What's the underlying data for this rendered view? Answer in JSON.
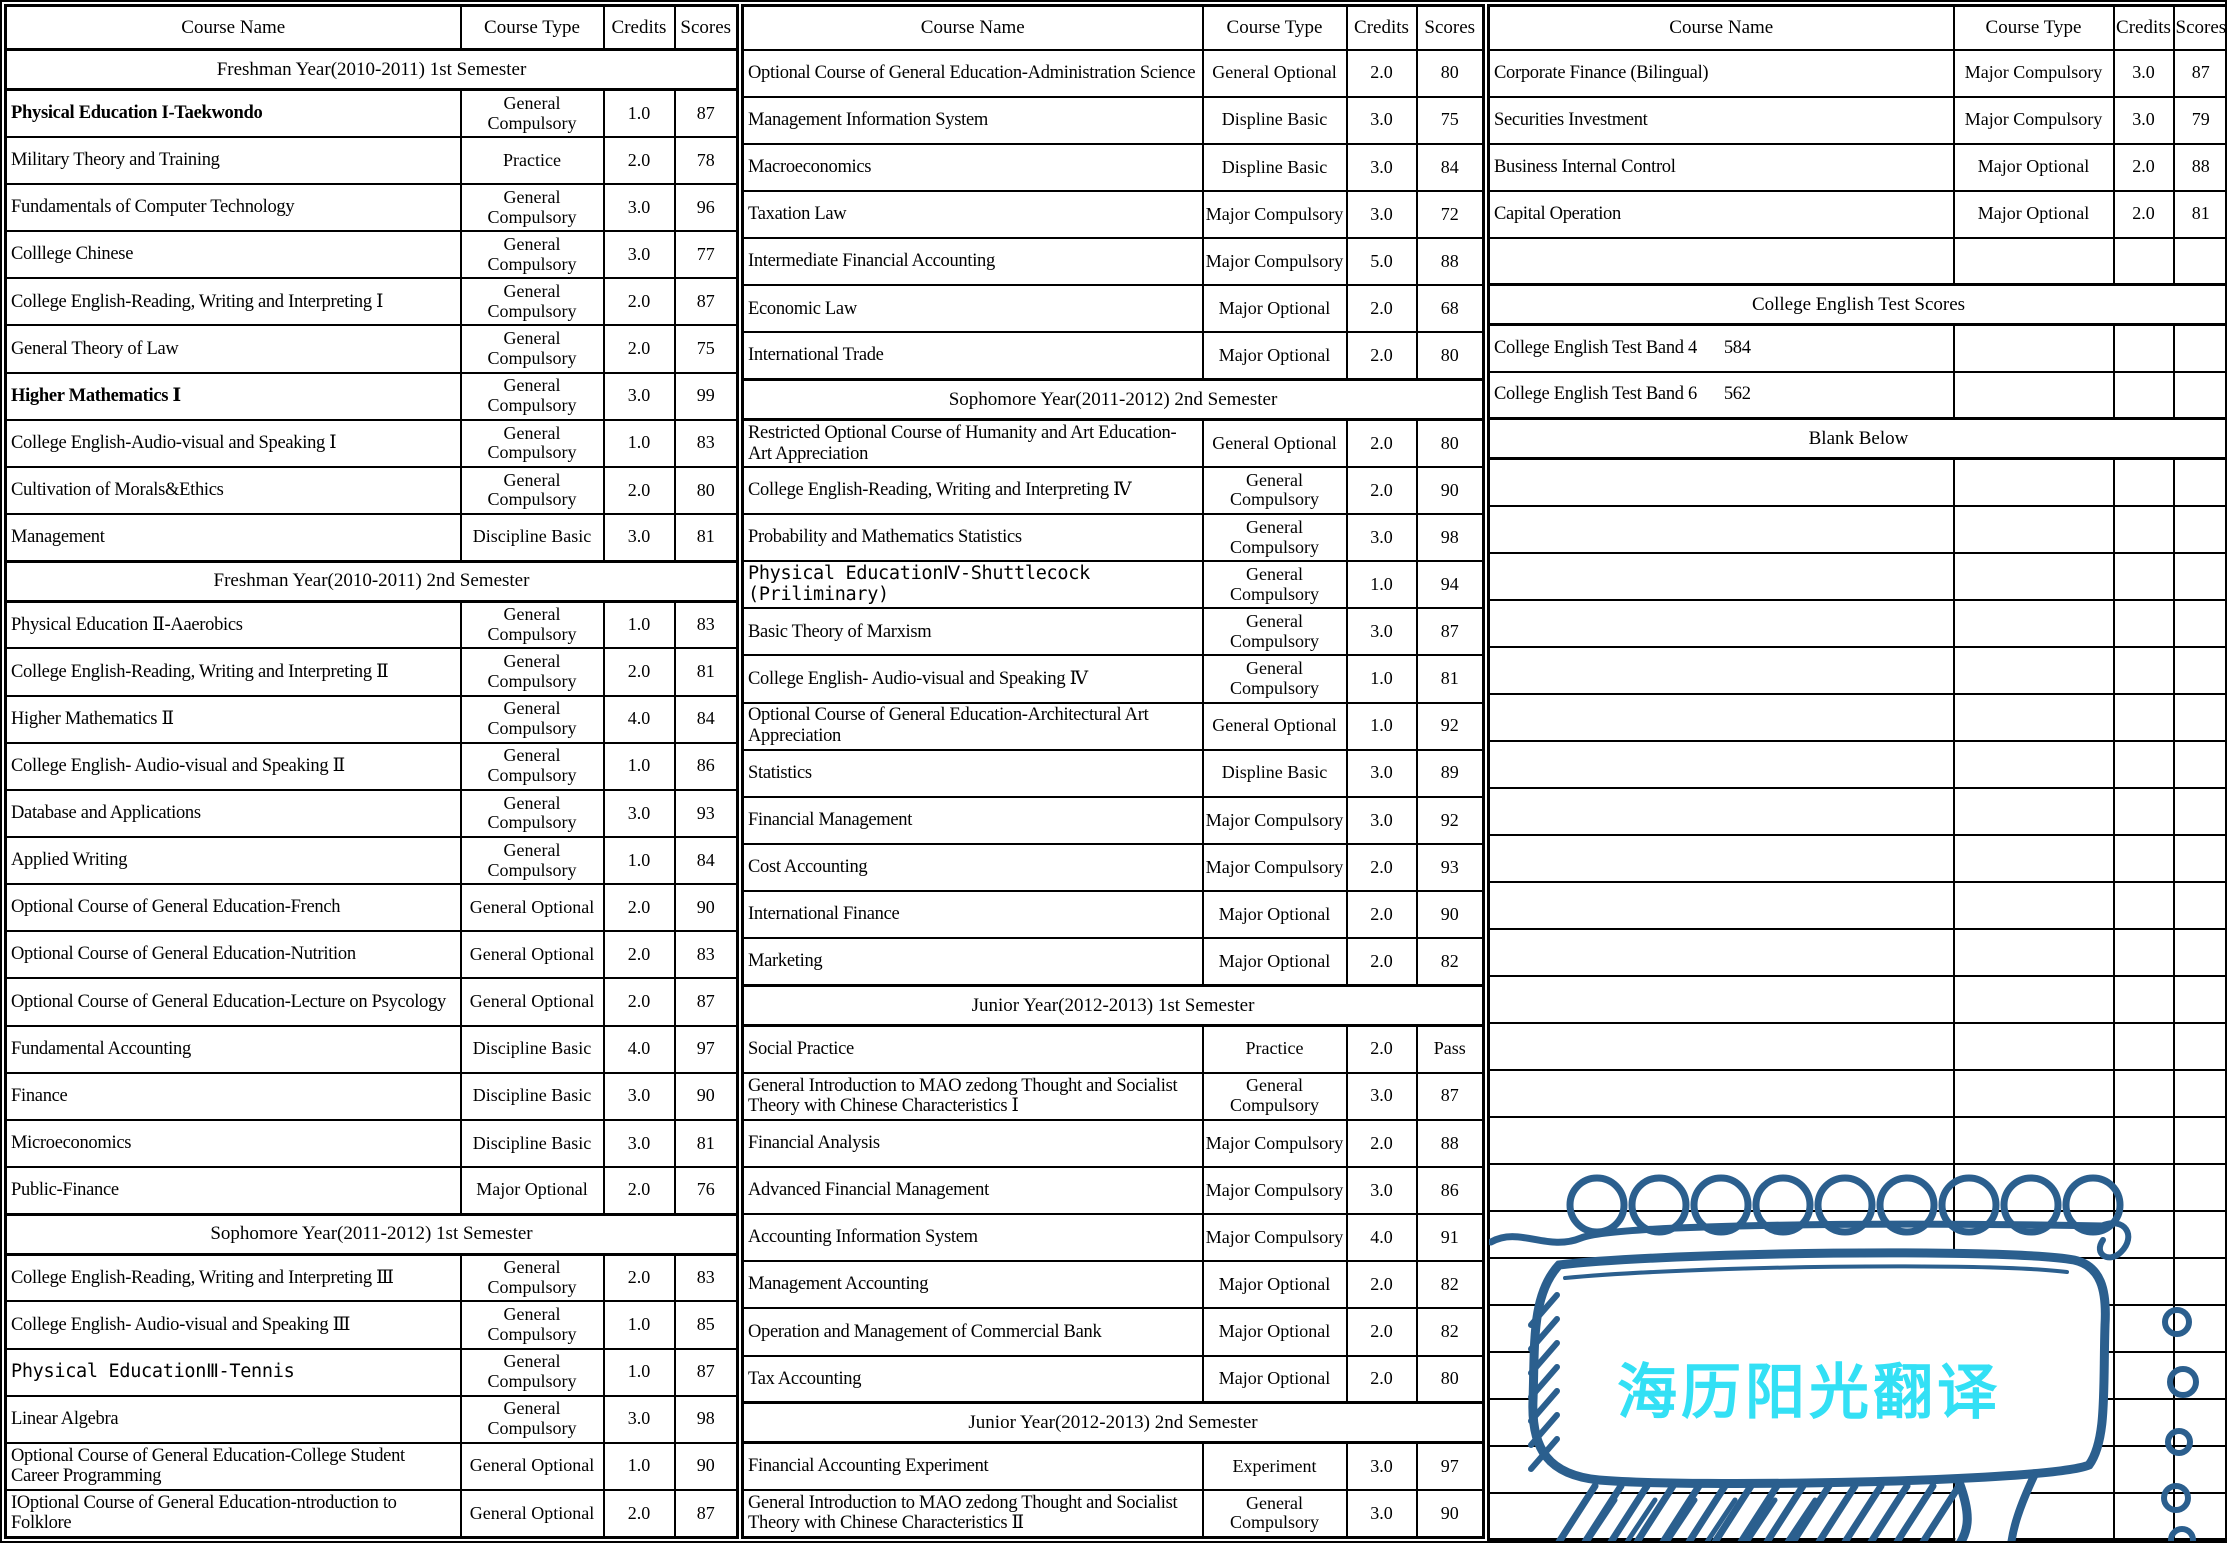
{
  "columns": [
    "Course Name",
    "Course Type",
    "Credits",
    "Scores"
  ],
  "groups": [
    {
      "rows": [
        {
          "kind": "section",
          "text": "Freshman Year(2010-2011) 1st Semester"
        },
        {
          "kind": "course",
          "name": "Physical Education I-Taekwondo",
          "type": "General Compulsory",
          "credits": "1.0",
          "score": "87",
          "bold": true
        },
        {
          "kind": "course",
          "name": "Military Theory and Training",
          "type": "Practice",
          "credits": "2.0",
          "score": "78"
        },
        {
          "kind": "course",
          "name": "Fundamentals of Computer Technology",
          "type": "General Compulsory",
          "credits": "3.0",
          "score": "96"
        },
        {
          "kind": "course",
          "name": "Colllege Chinese",
          "type": "General Compulsory",
          "credits": "3.0",
          "score": "77"
        },
        {
          "kind": "course",
          "name": "College English-Reading, Writing and Interpreting Ⅰ",
          "type": "General Compulsory",
          "credits": "2.0",
          "score": "87"
        },
        {
          "kind": "course",
          "name": "General Theory of Law",
          "type": "General Compulsory",
          "credits": "2.0",
          "score": "75"
        },
        {
          "kind": "course",
          "name": "Higher Mathematics Ⅰ",
          "type": "General Compulsory",
          "credits": "3.0",
          "score": "99",
          "bold": true
        },
        {
          "kind": "course",
          "name": "College English-Audio-visual and Speaking Ⅰ",
          "type": "General Compulsory",
          "credits": "1.0",
          "score": "83"
        },
        {
          "kind": "course",
          "name": "Cultivation of Morals&Ethics",
          "type": "General Compulsory",
          "credits": "2.0",
          "score": "80"
        },
        {
          "kind": "course",
          "name": "Management",
          "type": "Discipline Basic",
          "credits": "3.0",
          "score": "81"
        },
        {
          "kind": "section",
          "text": "Freshman Year(2010-2011) 2nd Semester"
        },
        {
          "kind": "course",
          "name": "Physical Education Ⅱ-Aaerobics",
          "type": "General Compulsory",
          "credits": "1.0",
          "score": "83"
        },
        {
          "kind": "course",
          "name": "College English-Reading, Writing and Interpreting Ⅱ",
          "type": "General Compulsory",
          "credits": "2.0",
          "score": "81"
        },
        {
          "kind": "course",
          "name": "Higher Mathematics Ⅱ",
          "type": "General Compulsory",
          "credits": "4.0",
          "score": "84"
        },
        {
          "kind": "course",
          "name": "College English- Audio-visual and Speaking Ⅱ",
          "type": "General Compulsory",
          "credits": "1.0",
          "score": "86"
        },
        {
          "kind": "course",
          "name": "Database and Applications",
          "type": "General Compulsory",
          "credits": "3.0",
          "score": "93"
        },
        {
          "kind": "course",
          "name": "Applied Writing",
          "type": "General Compulsory",
          "credits": "1.0",
          "score": "84"
        },
        {
          "kind": "course",
          "name": "Optional Course of General Education-French",
          "type": "General Optional",
          "credits": "2.0",
          "score": "90"
        },
        {
          "kind": "course",
          "name": "Optional Course of General Education-Nutrition",
          "type": "General Optional",
          "credits": "2.0",
          "score": "83"
        },
        {
          "kind": "course",
          "name": "Optional Course of General Education-Lecture on Psycology",
          "type": "General Optional",
          "credits": "2.0",
          "score": "87"
        },
        {
          "kind": "course",
          "name": "Fundamental  Accounting",
          "type": "Discipline Basic",
          "credits": "4.0",
          "score": "97"
        },
        {
          "kind": "course",
          "name": "Finance",
          "type": "Discipline Basic",
          "credits": "3.0",
          "score": "90"
        },
        {
          "kind": "course",
          "name": "Microeconomics",
          "type": "Discipline Basic",
          "credits": "3.0",
          "score": "81"
        },
        {
          "kind": "course",
          "name": "Public-Finance",
          "type": "Major Optional",
          "credits": "2.0",
          "score": "76"
        },
        {
          "kind": "section",
          "text": "Sophomore Year(2011-2012) 1st Semester"
        },
        {
          "kind": "course",
          "name": "College English-Reading, Writing and Interpreting Ⅲ",
          "type": "General Compulsory",
          "credits": "2.0",
          "score": "83"
        },
        {
          "kind": "course",
          "name": "College English- Audio-visual and Speaking Ⅲ",
          "type": "General Compulsory",
          "credits": "1.0",
          "score": "85"
        },
        {
          "kind": "course",
          "name": "Physical EducationⅢ-Tennis",
          "type": "General Compulsory",
          "credits": "1.0",
          "score": "87",
          "mono": true
        },
        {
          "kind": "course",
          "name": "Linear Algebra",
          "type": "General Compulsory",
          "credits": "3.0",
          "score": "98"
        },
        {
          "kind": "course",
          "name": "Optional Course of General Education-College Student Career Programming",
          "type": "General Optional",
          "credits": "1.0",
          "score": "90"
        },
        {
          "kind": "course",
          "name": "IOptional Course of General Education-ntroduction to Folklore",
          "type": "General Optional",
          "credits": "2.0",
          "score": "87"
        }
      ]
    },
    {
      "rows": [
        {
          "kind": "course",
          "name": "Optional Course of General Education-Administration Science",
          "type": "General Optional",
          "credits": "2.0",
          "score": "80"
        },
        {
          "kind": "course",
          "name": "Management Information System",
          "type": "Displine Basic",
          "credits": "3.0",
          "score": "75"
        },
        {
          "kind": "course",
          "name": "Macroeconomics",
          "type": "Displine Basic",
          "credits": "3.0",
          "score": "84"
        },
        {
          "kind": "course",
          "name": "Taxation Law",
          "type": "Major Compulsory",
          "credits": "3.0",
          "score": "72"
        },
        {
          "kind": "course",
          "name": "Intermediate Financial Accounting",
          "type": "Major Compulsory",
          "credits": "5.0",
          "score": "88"
        },
        {
          "kind": "course",
          "name": "Economic Law",
          "type": "Major Optional",
          "credits": "2.0",
          "score": "68"
        },
        {
          "kind": "course",
          "name": "International Trade",
          "type": "Major Optional",
          "credits": "2.0",
          "score": "80"
        },
        {
          "kind": "section",
          "text": "Sophomore Year(2011-2012) 2nd Semester"
        },
        {
          "kind": "course",
          "name": "Restricted Optional Course of  Humanity and Art Education-Art Appreciation",
          "type": "General Optional",
          "credits": "2.0",
          "score": "80"
        },
        {
          "kind": "course",
          "name": "College English-Reading, Writing and Interpreting Ⅳ",
          "type": "General Compulsory",
          "credits": "2.0",
          "score": "90"
        },
        {
          "kind": "course",
          "name": "Probability and Mathematics Statistics",
          "type": "General Compulsory",
          "credits": "3.0",
          "score": "98"
        },
        {
          "kind": "course",
          "name": "Physical EducationⅣ-Shuttlecock (Priliminary)",
          "type": "General Compulsory",
          "credits": "1.0",
          "score": "94",
          "mono": true
        },
        {
          "kind": "course",
          "name": "Basic Theory of Marxism",
          "type": "General Compulsory",
          "credits": "3.0",
          "score": "87"
        },
        {
          "kind": "course",
          "name": "College English- Audio-visual and Speaking Ⅳ",
          "type": "General Compulsory",
          "credits": "1.0",
          "score": "81"
        },
        {
          "kind": "course",
          "name": "Optional Course of General Education-Architectural Art Appreciation",
          "type": "General Optional",
          "credits": "1.0",
          "score": "92"
        },
        {
          "kind": "course",
          "name": "Statistics",
          "type": "Displine Basic",
          "credits": "3.0",
          "score": "89"
        },
        {
          "kind": "course",
          "name": "Financial Management",
          "type": "Major Compulsory",
          "credits": "3.0",
          "score": "92"
        },
        {
          "kind": "course",
          "name": "Cost Accounting",
          "type": "Major Compulsory",
          "credits": "2.0",
          "score": "93"
        },
        {
          "kind": "course",
          "name": "International Finance",
          "type": "Major Optional",
          "credits": "2.0",
          "score": "90"
        },
        {
          "kind": "course",
          "name": "Marketing",
          "type": "Major Optional",
          "credits": "2.0",
          "score": "82"
        },
        {
          "kind": "section",
          "text": "Junior Year(2012-2013) 1st Semester"
        },
        {
          "kind": "course",
          "name": "Social Practice",
          "type": "Practice",
          "credits": "2.0",
          "score": "Pass"
        },
        {
          "kind": "course",
          "name": "General Introduction to MAO zedong Thought and Socialist Theory with Chinese Characteristics Ⅰ",
          "type": "General Compulsory",
          "credits": "3.0",
          "score": "87"
        },
        {
          "kind": "course",
          "name": "Financial Analysis",
          "type": "Major Compulsory",
          "credits": "2.0",
          "score": "88"
        },
        {
          "kind": "course",
          "name": "Advanced Financial Management",
          "type": "Major Compulsory",
          "credits": "3.0",
          "score": "86"
        },
        {
          "kind": "course",
          "name": "Accounting Information System",
          "type": "Major Compulsory",
          "credits": "4.0",
          "score": "91"
        },
        {
          "kind": "course",
          "name": "Management Accounting",
          "type": "Major Optional",
          "credits": "2.0",
          "score": "82"
        },
        {
          "kind": "course",
          "name": "Operation and Management of Commercial Bank",
          "type": "Major Optional",
          "credits": "2.0",
          "score": "82"
        },
        {
          "kind": "course",
          "name": "Tax Accounting",
          "type": "Major Optional",
          "credits": "2.0",
          "score": "80"
        },
        {
          "kind": "section",
          "text": "Junior Year(2012-2013) 2nd Semester"
        },
        {
          "kind": "course",
          "name": "Financial Accounting Experiment",
          "type": "Experiment",
          "credits": "3.0",
          "score": "97"
        },
        {
          "kind": "course",
          "name": "General Introduction to MAO zedong Thought and Socialist Theory with Chinese Characteristics Ⅱ",
          "type": "General Compulsory",
          "credits": "3.0",
          "score": "90"
        }
      ]
    },
    {
      "rows": [
        {
          "kind": "course",
          "name": "Corporate Finance (Bilingual)",
          "type": "Major Compulsory",
          "credits": "3.0",
          "score": "87"
        },
        {
          "kind": "course",
          "name": "Securities Investment",
          "type": "Major Compulsory",
          "credits": "3.0",
          "score": "79"
        },
        {
          "kind": "course",
          "name": "Business Internal Control",
          "type": "Major Optional",
          "credits": "2.0",
          "score": "88"
        },
        {
          "kind": "course",
          "name": "Capital Operation",
          "type": "Major Optional",
          "credits": "2.0",
          "score": "81"
        },
        {
          "kind": "empty"
        },
        {
          "kind": "section",
          "text": "College English Test Scores"
        },
        {
          "kind": "course",
          "name": "College English Test Band 4   584",
          "type": "",
          "credits": "",
          "score": ""
        },
        {
          "kind": "course",
          "name": "College English Test Band 6   562",
          "type": "",
          "credits": "",
          "score": ""
        },
        {
          "kind": "section",
          "text": "Blank Below"
        },
        {
          "kind": "empty",
          "repeat": 23
        }
      ]
    }
  ],
  "stamp": {
    "text": "海历阳光翻译",
    "ink_color": "#2b5f8e",
    "text_color": "#33e0f5"
  }
}
